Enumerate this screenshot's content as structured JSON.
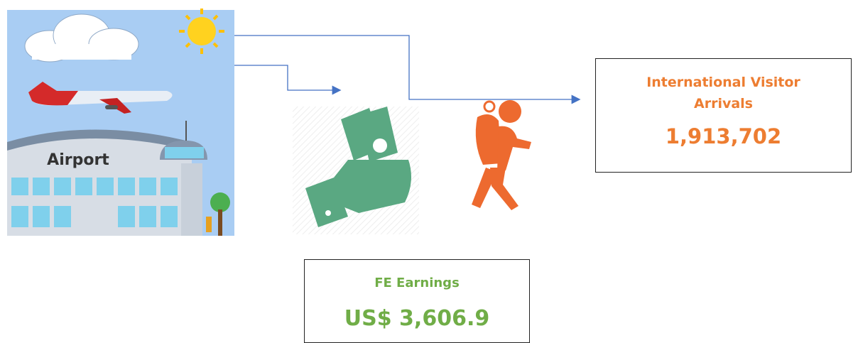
{
  "airport_image": {
    "label": "Airport"
  },
  "boxes": [
    {
      "title": "International Visitor Arrivals",
      "value": "1,913,702"
    },
    {
      "title": "FE Earnings",
      "value": "US$ 3,606.9"
    }
  ]
}
